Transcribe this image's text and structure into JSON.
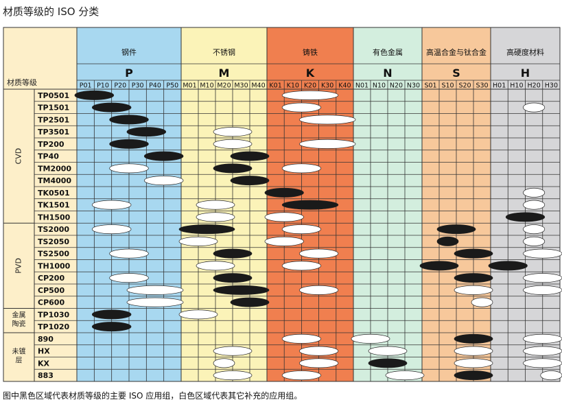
{
  "title": "材质等级的 ISO 分类",
  "corner_label": "材质等级",
  "caption": "图中黑色区域代表材质等级的主要 ISO 应用组，白色区域代表其它补充的应用组。",
  "colors": {
    "P": "#a8d8f0",
    "M": "#fbf3b8",
    "K": "#f07f4f",
    "N": "#d3eede",
    "S": "#f7c89b",
    "H": "#d6d6d8",
    "label_bg": "#fdefc9",
    "grid": "#333333",
    "ellipse_primary": "#1a1a1a",
    "ellipse_secondary": "#ffffff"
  },
  "iso_groups": [
    {
      "id": "P",
      "name": "钢件",
      "letter": "P",
      "subs": [
        "P01",
        "P10",
        "P20",
        "P30",
        "P40",
        "P50"
      ]
    },
    {
      "id": "M",
      "name": "不锈钢",
      "letter": "M",
      "subs": [
        "M01",
        "M10",
        "M20",
        "M30",
        "M40"
      ]
    },
    {
      "id": "K",
      "name": "铸铁",
      "letter": "K",
      "subs": [
        "K01",
        "K10",
        "K20",
        "K30",
        "K40"
      ]
    },
    {
      "id": "N",
      "name": "有色金属",
      "letter": "N",
      "subs": [
        "N01",
        "N10",
        "N20",
        "N30"
      ]
    },
    {
      "id": "S",
      "name": "高温合金与钛合金",
      "letter": "S",
      "subs": [
        "S01",
        "S10",
        "S20",
        "S30"
      ]
    },
    {
      "id": "H",
      "name": "高硬度材料",
      "letter": "H",
      "subs": [
        "H01",
        "H10",
        "H20",
        "H30"
      ]
    }
  ],
  "categories": [
    {
      "label": "CVD",
      "from": 0,
      "to": 10,
      "vertical": true
    },
    {
      "label": "PVD",
      "from": 11,
      "to": 17,
      "vertical": true
    },
    {
      "label": "金属陶瓷",
      "from": 18,
      "to": 19,
      "vertical": false
    },
    {
      "label": "未镀层",
      "from": 20,
      "to": 23,
      "vertical": false
    }
  ],
  "grades": [
    {
      "name": "TP0501",
      "marks": [
        [
          "P01",
          "P10",
          "primary"
        ],
        [
          "K10",
          "K30",
          "secondary"
        ]
      ]
    },
    {
      "name": "TP1501",
      "marks": [
        [
          "P10",
          "P20",
          "primary"
        ],
        [
          "K10",
          "K20",
          "secondary"
        ],
        [
          "H20",
          "H20",
          "secondary"
        ]
      ]
    },
    {
      "name": "TP2501",
      "marks": [
        [
          "P20",
          "P30",
          "primary"
        ],
        [
          "K20",
          "K40",
          "secondary"
        ]
      ]
    },
    {
      "name": "TP3501",
      "marks": [
        [
          "P30",
          "P40",
          "primary"
        ],
        [
          "M20",
          "M30",
          "secondary"
        ]
      ]
    },
    {
      "name": "TP200",
      "marks": [
        [
          "P20",
          "P30",
          "primary"
        ],
        [
          "M20",
          "M30",
          "secondary"
        ],
        [
          "K20",
          "K40",
          "secondary"
        ]
      ]
    },
    {
      "name": "TP40",
      "marks": [
        [
          "P40",
          "P50",
          "primary"
        ],
        [
          "M30",
          "M40",
          "primary"
        ]
      ]
    },
    {
      "name": "TM2000",
      "marks": [
        [
          "P20",
          "P30",
          "secondary"
        ],
        [
          "M20",
          "M30",
          "primary"
        ],
        [
          "K10",
          "K20",
          "secondary"
        ]
      ]
    },
    {
      "name": "TM4000",
      "marks": [
        [
          "P40",
          "P50",
          "secondary"
        ],
        [
          "M30",
          "M40",
          "primary"
        ]
      ]
    },
    {
      "name": "TK0501",
      "marks": [
        [
          "K01",
          "K10",
          "primary"
        ],
        [
          "H20",
          "H20",
          "secondary"
        ]
      ]
    },
    {
      "name": "TK1501",
      "marks": [
        [
          "P10",
          "P20",
          "secondary"
        ],
        [
          "M10",
          "M20",
          "secondary"
        ],
        [
          "K10",
          "K30",
          "primary"
        ],
        [
          "H20",
          "H20",
          "secondary"
        ]
      ]
    },
    {
      "name": "TH1500",
      "marks": [
        [
          "M10",
          "M20",
          "secondary"
        ],
        [
          "K01",
          "K10",
          "secondary"
        ],
        [
          "H10",
          "H20",
          "primary"
        ]
      ]
    },
    {
      "name": "TS2000",
      "marks": [
        [
          "P10",
          "P20",
          "secondary"
        ],
        [
          "M01",
          "M20",
          "primary"
        ],
        [
          "K10",
          "K20",
          "secondary"
        ],
        [
          "S10",
          "S20",
          "primary"
        ],
        [
          "H20",
          "H20",
          "secondary"
        ]
      ]
    },
    {
      "name": "TS2050",
      "marks": [
        [
          "M01",
          "M10",
          "secondary"
        ],
        [
          "K01",
          "K10",
          "secondary"
        ],
        [
          "S10",
          "S10",
          "primary"
        ],
        [
          "H20",
          "H20",
          "secondary"
        ]
      ]
    },
    {
      "name": "TS2500",
      "marks": [
        [
          "P20",
          "P30",
          "secondary"
        ],
        [
          "M20",
          "M30",
          "primary"
        ],
        [
          "K20",
          "K30",
          "secondary"
        ],
        [
          "S20",
          "S30",
          "primary"
        ],
        [
          "H20",
          "H30",
          "secondary"
        ]
      ]
    },
    {
      "name": "TH1000",
      "marks": [
        [
          "M10",
          "M20",
          "secondary"
        ],
        [
          "K10",
          "K20",
          "secondary"
        ],
        [
          "S01",
          "S10",
          "primary"
        ],
        [
          "H01",
          "H10",
          "primary"
        ]
      ]
    },
    {
      "name": "CP200",
      "marks": [
        [
          "P20",
          "P30",
          "secondary"
        ],
        [
          "M20",
          "M30",
          "primary"
        ],
        [
          "S20",
          "S30",
          "primary"
        ],
        [
          "H20",
          "H30",
          "secondary"
        ]
      ]
    },
    {
      "name": "CP500",
      "marks": [
        [
          "P30",
          "P50",
          "secondary"
        ],
        [
          "M20",
          "M40",
          "primary"
        ],
        [
          "K20",
          "K30",
          "secondary"
        ],
        [
          "S20",
          "S30",
          "secondary"
        ],
        [
          "H20",
          "H30",
          "secondary"
        ]
      ]
    },
    {
      "name": "CP600",
      "marks": [
        [
          "P30",
          "P50",
          "secondary"
        ],
        [
          "M30",
          "M40",
          "primary"
        ],
        [
          "S30",
          "S30",
          "secondary"
        ]
      ]
    },
    {
      "name": "TP1030",
      "marks": [
        [
          "P10",
          "P20",
          "primary"
        ],
        [
          "M01",
          "M10",
          "secondary"
        ]
      ]
    },
    {
      "name": "TP1020",
      "marks": [
        [
          "P10",
          "P20",
          "primary"
        ]
      ]
    },
    {
      "name": "890",
      "marks": [
        [
          "K10",
          "K20",
          "secondary"
        ],
        [
          "N01",
          "N10",
          "secondary"
        ],
        [
          "S20",
          "S30",
          "primary"
        ],
        [
          "H20",
          "H30",
          "secondary"
        ]
      ]
    },
    {
      "name": "HX",
      "marks": [
        [
          "M20",
          "M30",
          "secondary"
        ],
        [
          "K20",
          "K30",
          "secondary"
        ],
        [
          "N10",
          "N20",
          "secondary"
        ],
        [
          "S20",
          "S30",
          "secondary"
        ],
        [
          "H20",
          "H30",
          "secondary"
        ]
      ]
    },
    {
      "name": "KX",
      "marks": [
        [
          "M20",
          "M20",
          "secondary"
        ],
        [
          "K20",
          "K30",
          "secondary"
        ],
        [
          "N10",
          "N20",
          "primary"
        ],
        [
          "S20",
          "S30",
          "secondary"
        ],
        [
          "H20",
          "H30",
          "secondary"
        ]
      ]
    },
    {
      "name": "883",
      "marks": [
        [
          "M20",
          "M30",
          "secondary"
        ],
        [
          "K10",
          "K20",
          "secondary"
        ],
        [
          "N20",
          "N30",
          "secondary"
        ],
        [
          "S20",
          "S30",
          "primary"
        ],
        [
          "H30",
          "H30",
          "secondary"
        ]
      ]
    }
  ]
}
